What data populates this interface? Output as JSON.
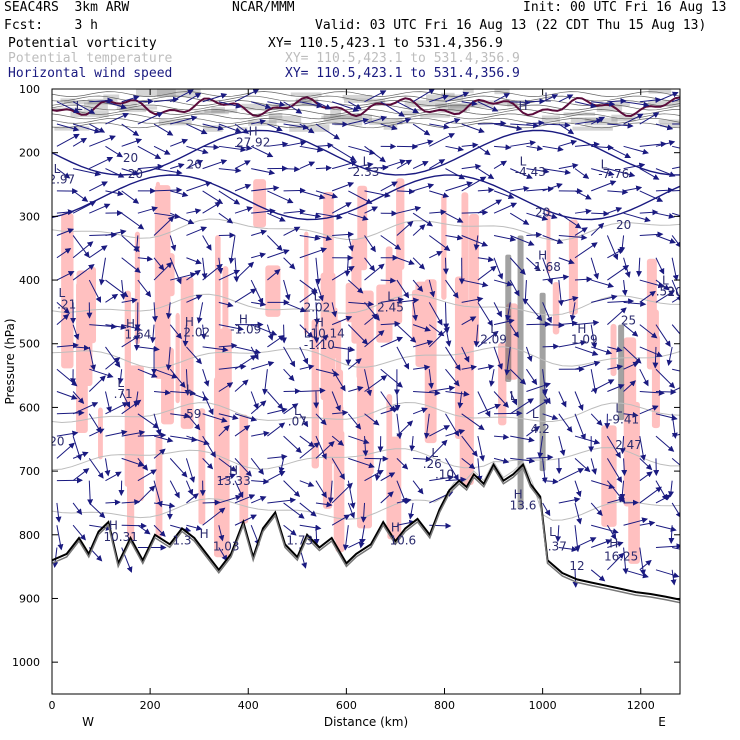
{
  "header": {
    "model": "SEAC4RS  3km ARW",
    "center": "NCAR/MMM",
    "init": "Init: 00 UTC Fri 16 Aug 13",
    "fcst": "Fcst:    3 h",
    "valid": "Valid: 03 UTC Fri 16 Aug 13 (22 CDT Thu 15 Aug 13)"
  },
  "fields": [
    {
      "name": "Potential vorticity",
      "xy": "XY= 110.5,423.1 to 531.4,356.9"
    },
    {
      "name": "Potential temperature",
      "xy": "XY= 110.5,423.1 to 531.4,356.9"
    },
    {
      "name": "Horizontal wind speed",
      "xy": "XY= 110.5,423.1 to 531.4,356.9"
    }
  ],
  "colors": {
    "pv": "#000000",
    "theta": "#bdbdbd",
    "wind": "#1a1a80",
    "pv_fill": "#ffc0c0",
    "pv_dark": "#5a0a3a",
    "cloud": "#555555"
  },
  "chart_data": {
    "type": "cross-section",
    "xlabel": "Distance (km)",
    "ylabel": "Pressure (hPa)",
    "xlim": [
      0,
      1280
    ],
    "ylim": [
      1050,
      100
    ],
    "x_ticks": [
      0,
      200,
      400,
      600,
      800,
      1000,
      1200
    ],
    "y_ticks": [
      100,
      200,
      300,
      400,
      500,
      600,
      700,
      800,
      900,
      1000
    ],
    "endpoints": {
      "left": "W",
      "right": "E"
    },
    "terrain": [
      [
        0,
        840
      ],
      [
        30,
        830
      ],
      [
        55,
        805
      ],
      [
        75,
        830
      ],
      [
        95,
        795
      ],
      [
        115,
        780
      ],
      [
        135,
        845
      ],
      [
        160,
        805
      ],
      [
        185,
        840
      ],
      [
        210,
        800
      ],
      [
        240,
        815
      ],
      [
        265,
        790
      ],
      [
        290,
        805
      ],
      [
        315,
        830
      ],
      [
        340,
        855
      ],
      [
        365,
        830
      ],
      [
        390,
        780
      ],
      [
        410,
        835
      ],
      [
        430,
        790
      ],
      [
        455,
        765
      ],
      [
        475,
        815
      ],
      [
        500,
        835
      ],
      [
        520,
        800
      ],
      [
        545,
        820
      ],
      [
        570,
        805
      ],
      [
        600,
        845
      ],
      [
        620,
        830
      ],
      [
        650,
        815
      ],
      [
        675,
        780
      ],
      [
        700,
        810
      ],
      [
        720,
        790
      ],
      [
        745,
        775
      ],
      [
        770,
        800
      ],
      [
        790,
        760
      ],
      [
        810,
        730
      ],
      [
        830,
        715
      ],
      [
        845,
        725
      ],
      [
        860,
        705
      ],
      [
        880,
        720
      ],
      [
        900,
        690
      ],
      [
        920,
        715
      ],
      [
        940,
        705
      ],
      [
        960,
        690
      ],
      [
        975,
        720
      ],
      [
        995,
        740
      ],
      [
        1010,
        840
      ],
      [
        1040,
        860
      ],
      [
        1070,
        870
      ],
      [
        1100,
        875
      ],
      [
        1130,
        880
      ],
      [
        1160,
        885
      ],
      [
        1190,
        890
      ],
      [
        1220,
        893
      ],
      [
        1250,
        897
      ],
      [
        1280,
        902
      ]
    ],
    "wind_isotachs": [
      {
        "label": "20",
        "x": 160,
        "p": 215
      },
      {
        "label": "20",
        "x": 170,
        "p": 240
      },
      {
        "label": "20",
        "x": 290,
        "p": 225
      },
      {
        "label": "20",
        "x": 1000,
        "p": 300
      },
      {
        "label": "20",
        "x": 1165,
        "p": 320
      },
      {
        "label": "20",
        "x": 1270,
        "p": 425
      },
      {
        "label": "25",
        "x": 1175,
        "p": 470
      }
    ],
    "annotations": [
      {
        "label": "L",
        "x": 55,
        "p": 133
      },
      {
        "label": "H",
        "x": 410,
        "p": 173
      },
      {
        "label": "27.92",
        "x": 410,
        "p": 190
      },
      {
        "label": "H",
        "x": 960,
        "p": 133
      },
      {
        "label": "L",
        "x": 1010,
        "p": 120
      },
      {
        "label": "L",
        "x": 10,
        "p": 232
      },
      {
        "label": "2.97",
        "x": 20,
        "p": 248
      },
      {
        "label": "L",
        "x": 640,
        "p": 220
      },
      {
        "label": "2.33",
        "x": 640,
        "p": 237
      },
      {
        "label": "L",
        "x": 960,
        "p": 220
      },
      {
        "label": "-4.43",
        "x": 975,
        "p": 237
      },
      {
        "label": "L",
        "x": 1125,
        "p": 225
      },
      {
        "label": "-7.76",
        "x": 1145,
        "p": 240
      },
      {
        "label": "H",
        "x": 1000,
        "p": 368
      },
      {
        "label": "1.68",
        "x": 1010,
        "p": 386
      },
      {
        "label": "L",
        "x": 1250,
        "p": 407
      },
      {
        "label": ".52",
        "x": 1250,
        "p": 424
      },
      {
        "label": "L",
        "x": 20,
        "p": 427
      },
      {
        "label": ".21",
        "x": 30,
        "p": 445
      },
      {
        "label": "H",
        "x": 160,
        "p": 475
      },
      {
        "label": "1.64",
        "x": 175,
        "p": 492
      },
      {
        "label": "H",
        "x": 280,
        "p": 472
      },
      {
        "label": "2.02",
        "x": 295,
        "p": 489
      },
      {
        "label": "H",
        "x": 390,
        "p": 468
      },
      {
        "label": "-1.09",
        "x": 395,
        "p": 484
      },
      {
        "label": "L",
        "x": 540,
        "p": 432
      },
      {
        "label": "2.02",
        "x": 540,
        "p": 449
      },
      {
        "label": "L",
        "x": 690,
        "p": 432
      },
      {
        "label": "2.45",
        "x": 690,
        "p": 449
      },
      {
        "label": "H",
        "x": 545,
        "p": 473
      },
      {
        "label": "L10.14",
        "x": 555,
        "p": 490
      },
      {
        "label": "-1.10",
        "x": 545,
        "p": 508
      },
      {
        "label": "L",
        "x": 900,
        "p": 483
      },
      {
        "label": "2.09",
        "x": 900,
        "p": 500
      },
      {
        "label": "H",
        "x": 1080,
        "p": 483
      },
      {
        "label": "1.09",
        "x": 1085,
        "p": 500
      },
      {
        "label": "L",
        "x": 140,
        "p": 568
      },
      {
        "label": ".71",
        "x": 145,
        "p": 585
      },
      {
        "label": "L",
        "x": 280,
        "p": 578
      },
      {
        "label": ".59",
        "x": 285,
        "p": 617
      },
      {
        "label": "L",
        "x": 500,
        "p": 612
      },
      {
        "label": ".07",
        "x": 500,
        "p": 628
      },
      {
        "label": "L",
        "x": 940,
        "p": 588
      },
      {
        "label": "L",
        "x": 985,
        "p": 617
      },
      {
        "label": "4.2",
        "x": 995,
        "p": 640
      },
      {
        "label": "L",
        "x": 1155,
        "p": 608
      },
      {
        "label": "-9.41",
        "x": 1165,
        "p": 625
      },
      {
        "label": "2.47",
        "x": 1175,
        "p": 665
      },
      {
        "label": "20",
        "x": 10,
        "p": 660
      },
      {
        "label": "L",
        "x": 780,
        "p": 678
      },
      {
        "label": ".26",
        "x": 775,
        "p": 695
      },
      {
        "label": ".10",
        "x": 800,
        "p": 712
      },
      {
        "label": "H",
        "x": 370,
        "p": 705
      },
      {
        "label": "13.33",
        "x": 370,
        "p": 722
      },
      {
        "label": "H",
        "x": 950,
        "p": 743
      },
      {
        "label": "13.6",
        "x": 960,
        "p": 760
      },
      {
        "label": "H",
        "x": 125,
        "p": 792
      },
      {
        "label": "10.31",
        "x": 140,
        "p": 810
      },
      {
        "label": "1.3",
        "x": 265,
        "p": 815
      },
      {
        "label": "H",
        "x": 310,
        "p": 805
      },
      {
        "label": "1.03",
        "x": 355,
        "p": 825
      },
      {
        "label": "1.73",
        "x": 505,
        "p": 815
      },
      {
        "label": "H",
        "x": 700,
        "p": 795
      },
      {
        "label": "10.6",
        "x": 715,
        "p": 815
      },
      {
        "label": "L",
        "x": 1020,
        "p": 802
      },
      {
        "label": ".37",
        "x": 1030,
        "p": 825
      },
      {
        "label": "H",
        "x": 1145,
        "p": 820
      },
      {
        "label": "16.25",
        "x": 1160,
        "p": 840
      },
      {
        "label": "12",
        "x": 1070,
        "p": 855
      }
    ]
  }
}
